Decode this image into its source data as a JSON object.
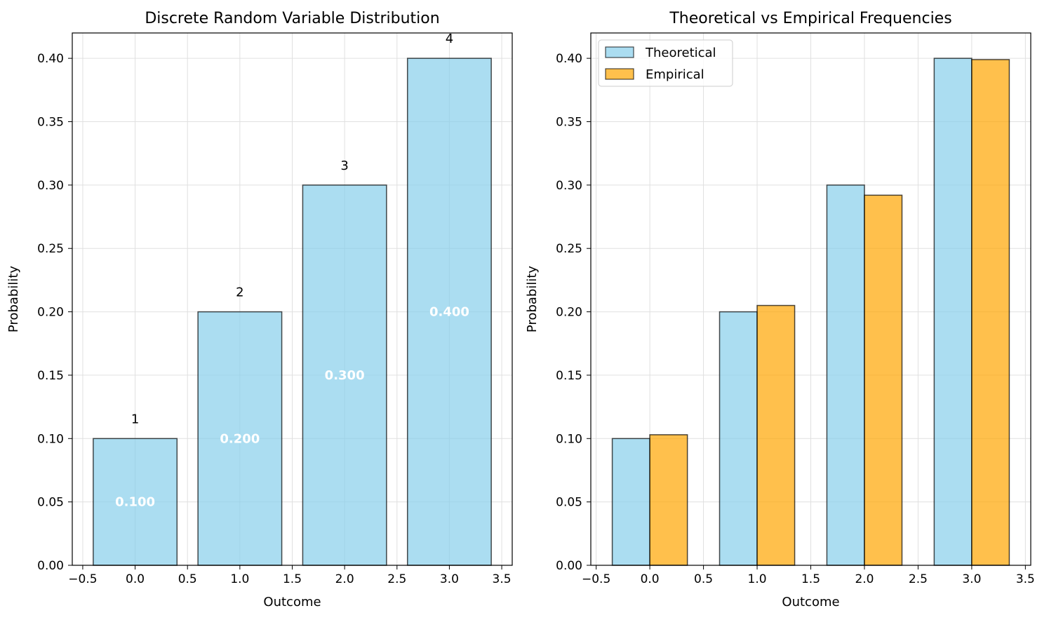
{
  "colors": {
    "theoretical": "#87ceeb",
    "empirical": "#ffa500",
    "edge": "#000000",
    "grid": "#e0e0e0"
  },
  "chart_data": [
    {
      "type": "bar",
      "title": "Discrete Random Variable Distribution",
      "xlabel": "Outcome",
      "ylabel": "Probability",
      "xlim": [
        -0.6,
        3.6
      ],
      "ylim": [
        0,
        0.42
      ],
      "xticks": [
        "−0.5",
        "0.0",
        "0.5",
        "1.0",
        "1.5",
        "2.0",
        "2.5",
        "3.0",
        "3.5"
      ],
      "xtick_values": [
        -0.5,
        0.0,
        0.5,
        1.0,
        1.5,
        2.0,
        2.5,
        3.0,
        3.5
      ],
      "yticks": [
        "0.00",
        "0.05",
        "0.10",
        "0.15",
        "0.20",
        "0.25",
        "0.30",
        "0.35",
        "0.40"
      ],
      "ytick_values": [
        0.0,
        0.05,
        0.1,
        0.15,
        0.2,
        0.25,
        0.3,
        0.35,
        0.4
      ],
      "grid": true,
      "x": [
        0,
        1,
        2,
        3
      ],
      "values": [
        0.1,
        0.2,
        0.3,
        0.4
      ],
      "bar_width": 0.8,
      "top_labels": [
        "1",
        "2",
        "3",
        "4"
      ],
      "inner_labels": [
        "0.100",
        "0.200",
        "0.300",
        "0.400"
      ]
    },
    {
      "type": "bar",
      "title": "Theoretical vs Empirical Frequencies",
      "xlabel": "Outcome",
      "ylabel": "Probability",
      "xlim": [
        -0.55,
        3.55
      ],
      "ylim": [
        0,
        0.42
      ],
      "xticks": [
        "−0.5",
        "0.0",
        "0.5",
        "1.0",
        "1.5",
        "2.0",
        "2.5",
        "3.0",
        "3.5"
      ],
      "xtick_values": [
        -0.5,
        0.0,
        0.5,
        1.0,
        1.5,
        2.0,
        2.5,
        3.0,
        3.5
      ],
      "yticks": [
        "0.00",
        "0.05",
        "0.10",
        "0.15",
        "0.20",
        "0.25",
        "0.30",
        "0.35",
        "0.40"
      ],
      "ytick_values": [
        0.0,
        0.05,
        0.1,
        0.15,
        0.2,
        0.25,
        0.3,
        0.35,
        0.4
      ],
      "grid": true,
      "legend_position": "top-left",
      "x": [
        0,
        1,
        2,
        3
      ],
      "bar_width": 0.35,
      "series": [
        {
          "name": "Theoretical",
          "values": [
            0.1,
            0.2,
            0.3,
            0.4
          ],
          "offset": -0.175
        },
        {
          "name": "Empirical",
          "values": [
            0.103,
            0.205,
            0.292,
            0.399
          ],
          "offset": 0.175
        }
      ]
    }
  ]
}
